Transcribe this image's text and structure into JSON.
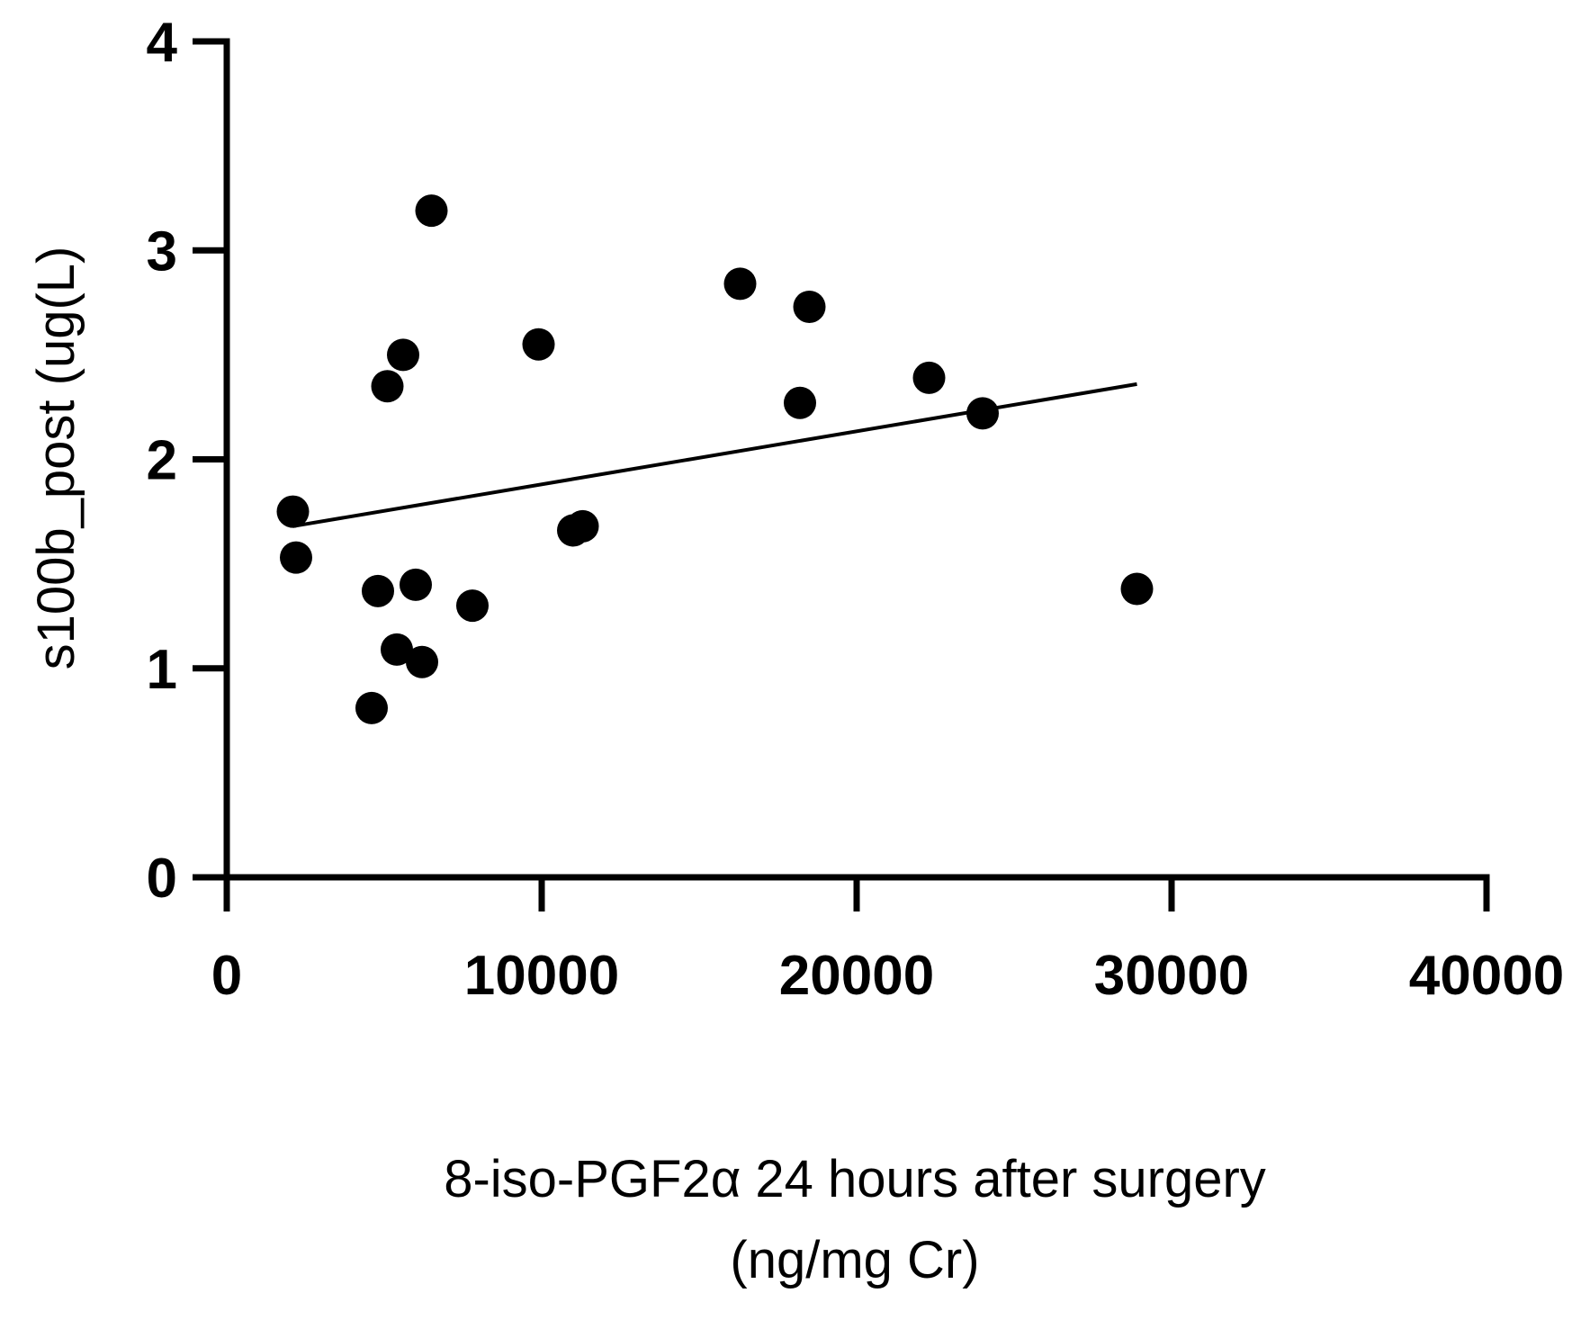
{
  "chart_data": {
    "type": "scatter",
    "title": "",
    "xlabel_lines": [
      "8-iso-PGF2α 24 hours after surgery",
      "(ng/mg Cr)"
    ],
    "ylabel": "s100b_post (ug(L)",
    "xlim": [
      0,
      40000
    ],
    "ylim": [
      0,
      4
    ],
    "xticks": [
      0,
      10000,
      20000,
      30000,
      40000
    ],
    "yticks": [
      0,
      1,
      2,
      3,
      4
    ],
    "xtick_labels": [
      "0",
      "10000",
      "20000",
      "30000",
      "40000"
    ],
    "ytick_labels": [
      "0",
      "1",
      "2",
      "3",
      "4"
    ],
    "series": [
      {
        "name": "s100b_post",
        "color": "#000000",
        "points": [
          {
            "x": 2100,
            "y": 1.75
          },
          {
            "x": 2200,
            "y": 1.53
          },
          {
            "x": 4600,
            "y": 0.81
          },
          {
            "x": 4800,
            "y": 1.37
          },
          {
            "x": 5100,
            "y": 2.35
          },
          {
            "x": 5400,
            "y": 1.09
          },
          {
            "x": 5600,
            "y": 2.5
          },
          {
            "x": 6000,
            "y": 1.4
          },
          {
            "x": 6200,
            "y": 1.03
          },
          {
            "x": 6500,
            "y": 3.19
          },
          {
            "x": 7800,
            "y": 1.3
          },
          {
            "x": 9900,
            "y": 2.55
          },
          {
            "x": 11000,
            "y": 1.66
          },
          {
            "x": 11300,
            "y": 1.68
          },
          {
            "x": 16300,
            "y": 2.84
          },
          {
            "x": 18200,
            "y": 2.27
          },
          {
            "x": 18500,
            "y": 2.73
          },
          {
            "x": 22300,
            "y": 2.39
          },
          {
            "x": 24000,
            "y": 2.22
          },
          {
            "x": 28900,
            "y": 1.38
          }
        ]
      }
    ],
    "regression_line": {
      "color": "#000000",
      "x": [
        2100,
        28900
      ],
      "y": [
        1.68,
        2.36
      ]
    }
  }
}
